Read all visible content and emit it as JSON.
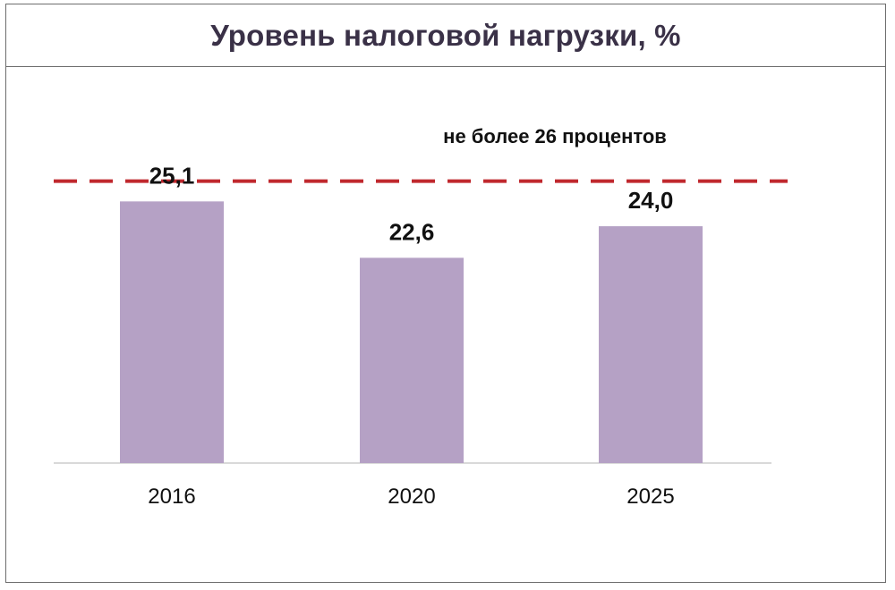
{
  "chart_data": {
    "type": "bar",
    "title": "Уровень налоговой нагрузки, %",
    "categories": [
      "2016",
      "2020",
      "2025"
    ],
    "values": [
      25.1,
      22.6,
      24.0
    ],
    "value_labels": [
      "25,1",
      "22,6",
      "24,0"
    ],
    "bar_color": "#b5a1c5",
    "threshold": {
      "value": 26,
      "label": "не более 26 процентов",
      "color": "#c0282d",
      "style": "dashed"
    },
    "xlabel": "",
    "ylabel": "",
    "ylim": [
      13.5,
      26.5
    ],
    "grid": false,
    "legend": "none"
  }
}
